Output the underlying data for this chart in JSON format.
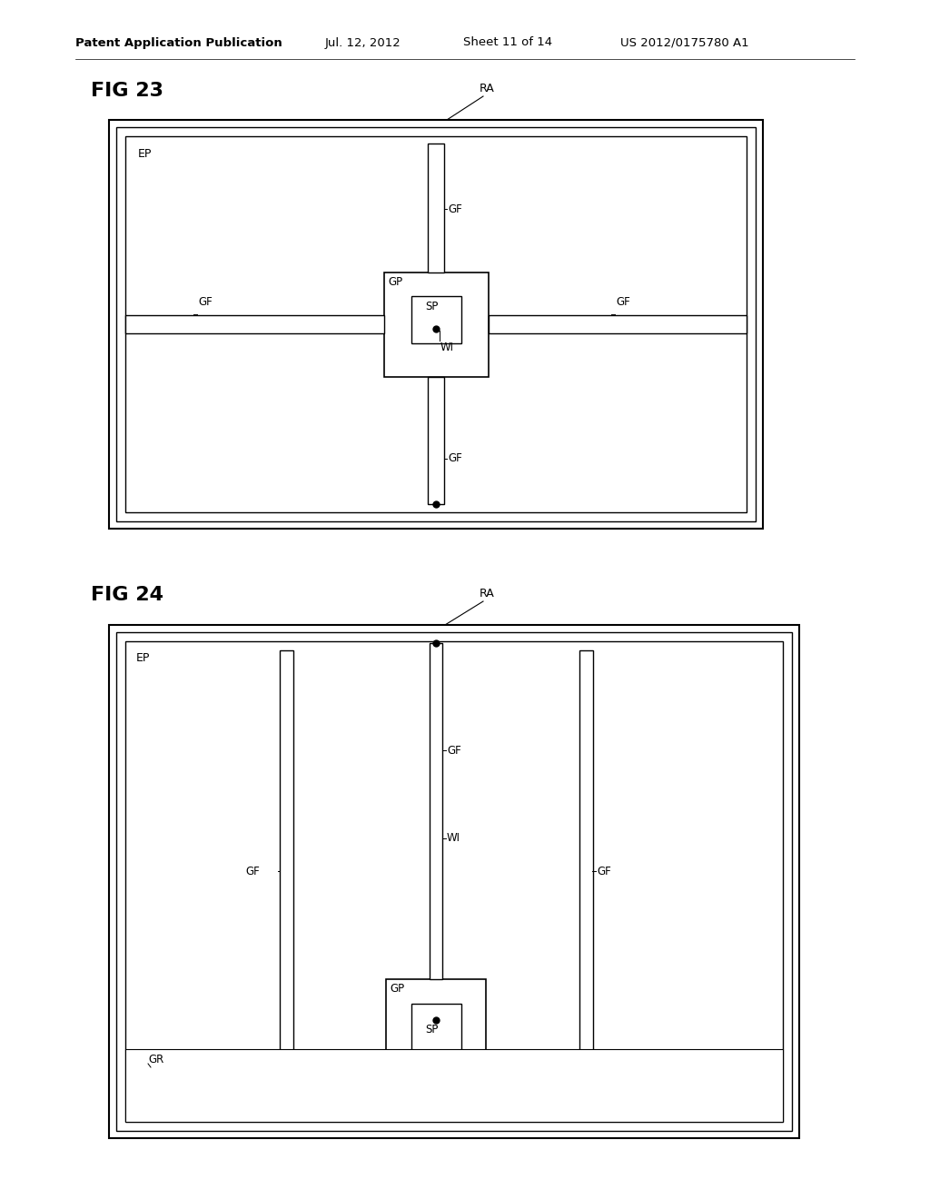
{
  "bg_color": "#ffffff",
  "header_text": "Patent Application Publication",
  "header_date": "Jul. 12, 2012",
  "header_sheet": "Sheet 11 of 14",
  "header_patent": "US 2012/0175780 A1",
  "fig23_label": "FIG 23",
  "fig24_label": "FIG 24",
  "lc": "#000000"
}
